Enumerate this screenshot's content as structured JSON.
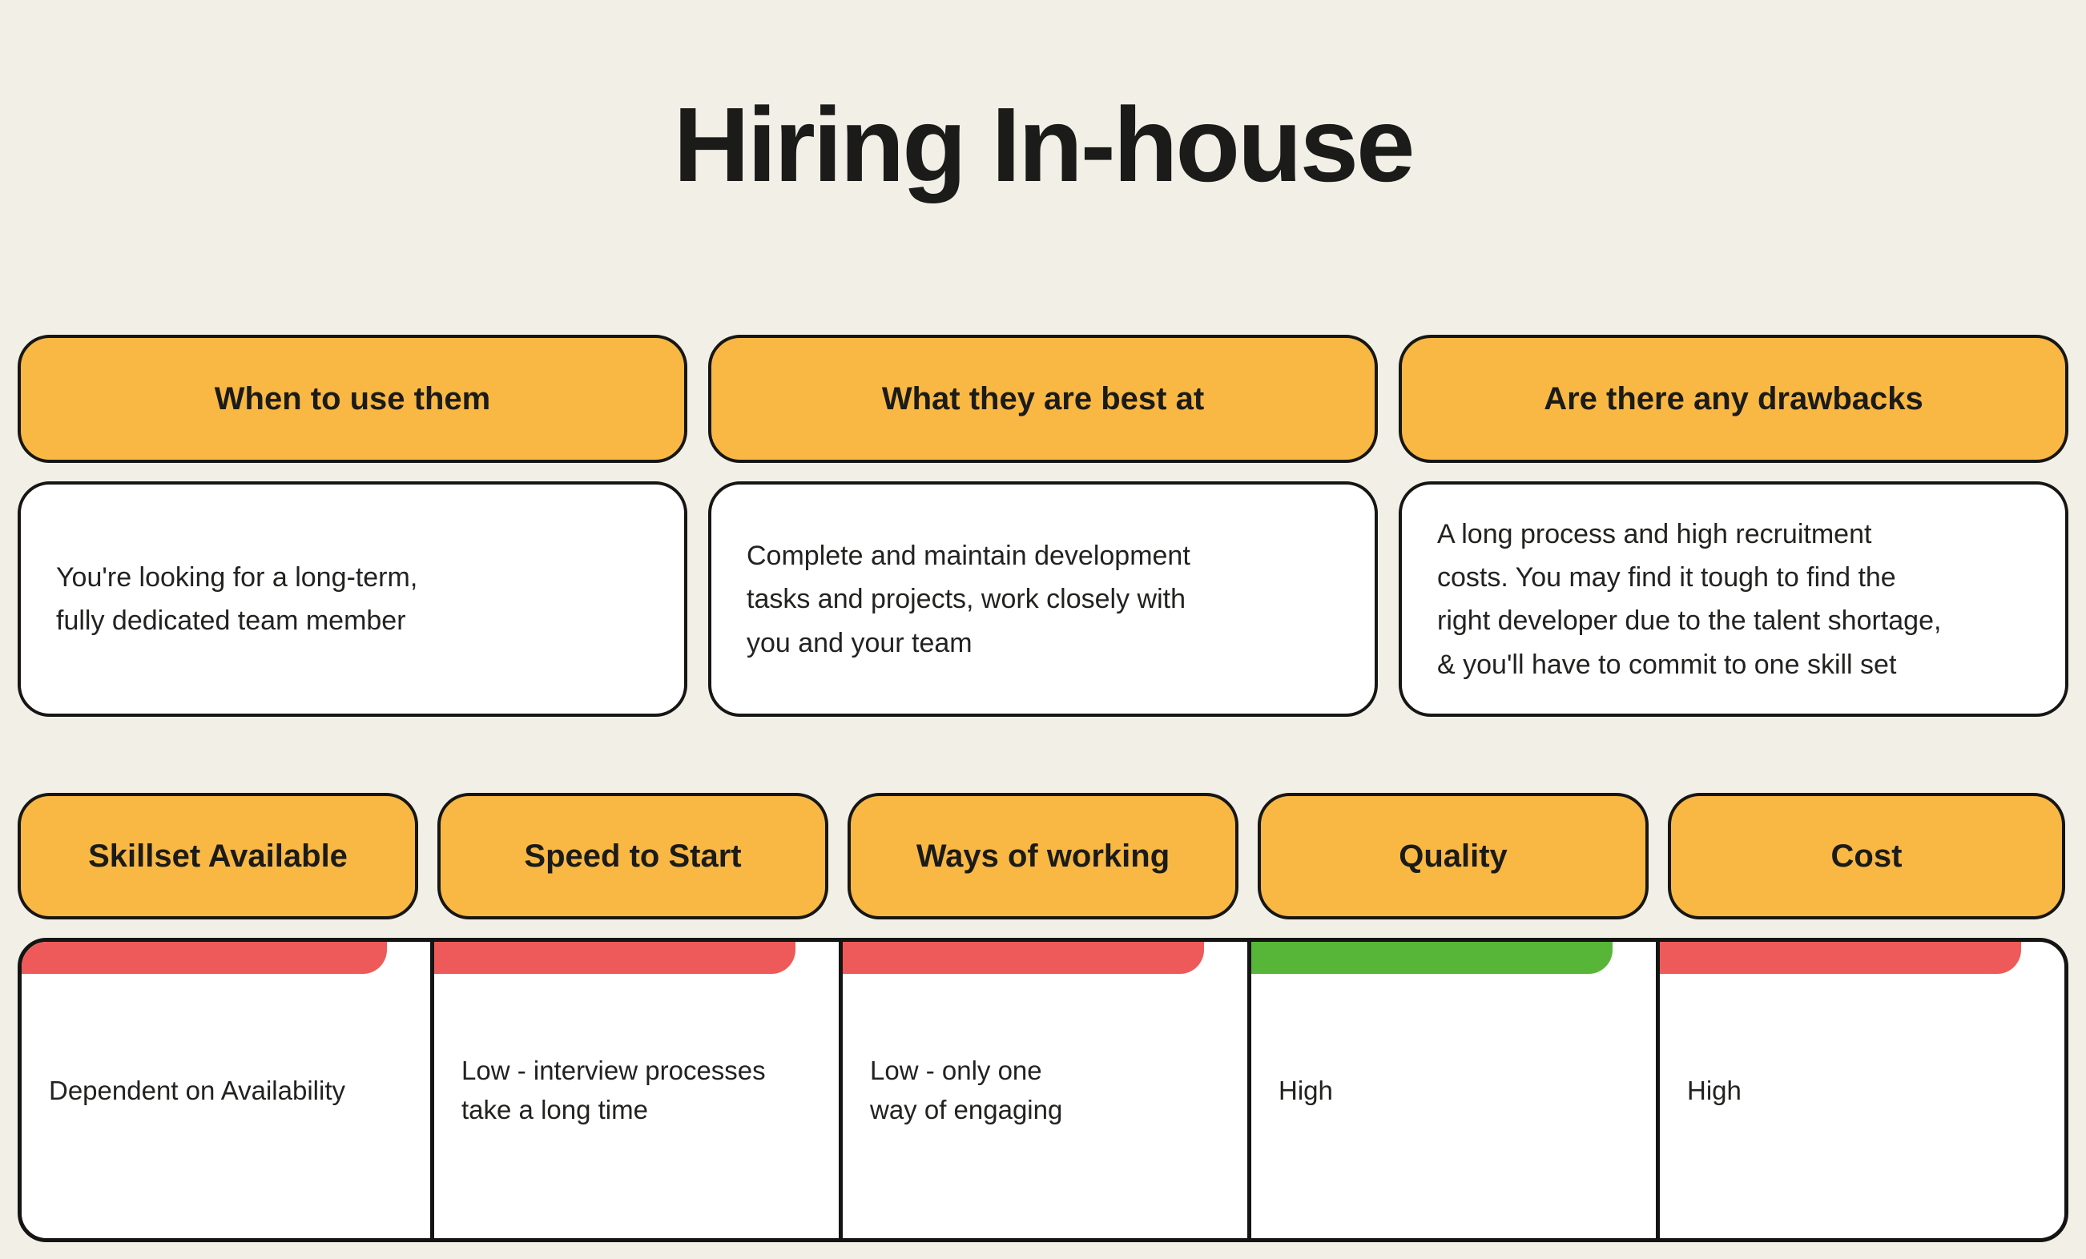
{
  "title": "Hiring In-house",
  "colors": {
    "background": "#F2EFE7",
    "accent_orange": "#F9B844",
    "status_red": "#EE5A5A",
    "status_green": "#57B637",
    "ink": "#1B1B19",
    "card_background": "#FFFFFF",
    "border": "#141412"
  },
  "qa_sections": [
    {
      "header": "When to use them",
      "body": "You're looking for a long-term,\nfully dedicated team member"
    },
    {
      "header": "What they are best at",
      "body": "Complete and maintain development\ntasks and projects, work closely with\nyou and your team"
    },
    {
      "header": "Are there any drawbacks",
      "body": "A long process and high recruitment\ncosts. You may find it tough to find the\nright developer due to the talent shortage,\n& you'll have to commit to one skill set"
    }
  ],
  "criteria_sections": [
    {
      "header": "Skillset Available",
      "value": "Dependent on Availability",
      "status": "red"
    },
    {
      "header": "Speed to Start",
      "value": "Low - interview processes\ntake a long time",
      "status": "red"
    },
    {
      "header": "Ways of working",
      "value": "Low - only one\nway of engaging",
      "status": "red"
    },
    {
      "header": "Quality",
      "value": "High",
      "status": "green"
    },
    {
      "header": "Cost",
      "value": "High",
      "status": "red"
    }
  ]
}
